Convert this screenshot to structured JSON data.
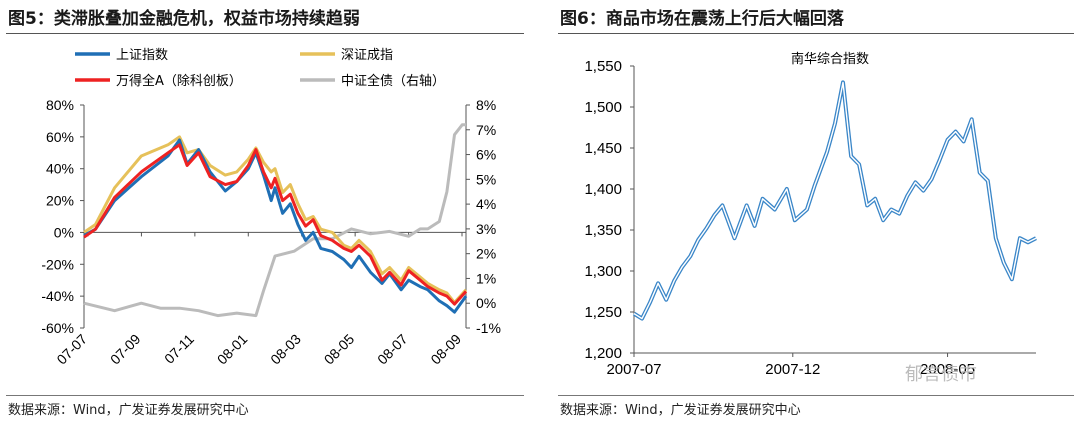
{
  "figures": {
    "fig5": {
      "title": "图5：类滞胀叠加金融危机，权益市场持续趋弱",
      "source": "数据来源：Wind，广发证券发展研究中心"
    },
    "fig6": {
      "title": "图6：商品市场在震荡上行后大幅回落",
      "source": "数据来源：Wind，广发证券发展研究中心"
    }
  },
  "watermark": "郁言债市",
  "colors": {
    "sh": "#1f6fb5",
    "sz": "#e6c15a",
    "wind": "#ee2222",
    "bond": "#bbbbbb",
    "nanhua": "#3a86c8"
  },
  "chart_data": [
    {
      "type": "line",
      "title": "",
      "x_ticks": [
        "07-07",
        "07-09",
        "07-11",
        "08-01",
        "08-03",
        "08-05",
        "08-07",
        "08-09"
      ],
      "ylim": [
        -60,
        80
      ],
      "y_ticks": [
        "80%",
        "60%",
        "40%",
        "20%",
        "0%",
        "-20%",
        "-40%",
        "-60%"
      ],
      "ylim_right": [
        -1,
        8
      ],
      "y_ticks_right": [
        "8%",
        "7%",
        "6%",
        "5%",
        "4%",
        "3%",
        "2%",
        "1%",
        "0%",
        "-1%"
      ],
      "legend": [
        "上证指数",
        "深证成指",
        "万得全A（除科创板）",
        "中证全债（右轴）"
      ],
      "series": [
        {
          "name": "上证指数",
          "axis": "left",
          "x": [
            0,
            0.03,
            0.08,
            0.15,
            0.22,
            0.25,
            0.27,
            0.3,
            0.33,
            0.37,
            0.4,
            0.43,
            0.45,
            0.47,
            0.49,
            0.5,
            0.52,
            0.54,
            0.56,
            0.58,
            0.6,
            0.62,
            0.65,
            0.68,
            0.7,
            0.72,
            0.75,
            0.78,
            0.8,
            0.83,
            0.85,
            0.88,
            0.9,
            0.93,
            0.95,
            0.97,
            1.0
          ],
          "values": [
            -2,
            2,
            20,
            35,
            48,
            58,
            43,
            52,
            38,
            26,
            32,
            40,
            50,
            36,
            20,
            28,
            12,
            18,
            5,
            -5,
            0,
            -10,
            -12,
            -17,
            -22,
            -15,
            -25,
            -32,
            -26,
            -36,
            -30,
            -34,
            -36,
            -43,
            -46,
            -50,
            -40
          ]
        },
        {
          "name": "深证成指",
          "axis": "left",
          "x": [
            0,
            0.03,
            0.08,
            0.15,
            0.22,
            0.25,
            0.27,
            0.3,
            0.33,
            0.37,
            0.4,
            0.43,
            0.45,
            0.47,
            0.49,
            0.5,
            0.52,
            0.54,
            0.56,
            0.58,
            0.6,
            0.62,
            0.65,
            0.68,
            0.7,
            0.72,
            0.75,
            0.78,
            0.8,
            0.83,
            0.85,
            0.88,
            0.9,
            0.93,
            0.95,
            0.97,
            1.0
          ],
          "values": [
            0,
            5,
            28,
            48,
            55,
            60,
            50,
            52,
            42,
            36,
            38,
            46,
            53,
            44,
            38,
            40,
            25,
            30,
            18,
            8,
            10,
            2,
            0,
            -8,
            -10,
            -5,
            -12,
            -26,
            -22,
            -30,
            -22,
            -28,
            -32,
            -36,
            -38,
            -44,
            -36
          ]
        },
        {
          "name": "万得全A（除科创板）",
          "axis": "left",
          "x": [
            0,
            0.03,
            0.08,
            0.15,
            0.22,
            0.25,
            0.27,
            0.3,
            0.33,
            0.37,
            0.4,
            0.43,
            0.45,
            0.47,
            0.49,
            0.5,
            0.52,
            0.54,
            0.56,
            0.58,
            0.6,
            0.62,
            0.65,
            0.68,
            0.7,
            0.72,
            0.75,
            0.78,
            0.8,
            0.83,
            0.85,
            0.88,
            0.9,
            0.93,
            0.95,
            0.97,
            1.0
          ],
          "values": [
            -3,
            2,
            22,
            38,
            50,
            55,
            42,
            50,
            35,
            30,
            32,
            42,
            52,
            38,
            28,
            34,
            20,
            24,
            12,
            4,
            8,
            -2,
            -5,
            -10,
            -12,
            -8,
            -15,
            -30,
            -25,
            -33,
            -24,
            -30,
            -34,
            -38,
            -40,
            -45,
            -37
          ]
        },
        {
          "name": "中证全债（右轴）",
          "axis": "right",
          "x": [
            0,
            0.08,
            0.15,
            0.2,
            0.25,
            0.3,
            0.35,
            0.4,
            0.45,
            0.47,
            0.5,
            0.55,
            0.6,
            0.65,
            0.7,
            0.75,
            0.8,
            0.85,
            0.88,
            0.9,
            0.93,
            0.95,
            0.97,
            0.99,
            1.0
          ],
          "values": [
            0,
            -0.3,
            0,
            -0.2,
            -0.2,
            -0.3,
            -0.5,
            -0.4,
            -0.5,
            0.5,
            1.9,
            2.1,
            2.6,
            2.6,
            3.0,
            2.8,
            2.9,
            2.7,
            3.0,
            3.0,
            3.3,
            4.5,
            6.8,
            7.2,
            7.2
          ]
        }
      ]
    },
    {
      "type": "line",
      "title": "南华综合指数",
      "x_ticks": [
        "2007-07",
        "2007-12",
        "2008-05"
      ],
      "ylim": [
        1200,
        1550
      ],
      "y_ticks": [
        "1,550",
        "1,500",
        "1,450",
        "1,400",
        "1,350",
        "1,300",
        "1,250",
        "1,200"
      ],
      "series": [
        {
          "name": "南华综合指数",
          "x": [
            0,
            0.02,
            0.04,
            0.06,
            0.08,
            0.1,
            0.12,
            0.14,
            0.16,
            0.18,
            0.2,
            0.22,
            0.25,
            0.28,
            0.3,
            0.32,
            0.35,
            0.38,
            0.4,
            0.43,
            0.45,
            0.48,
            0.5,
            0.52,
            0.54,
            0.56,
            0.58,
            0.6,
            0.62,
            0.64,
            0.66,
            0.68,
            0.7,
            0.72,
            0.74,
            0.76,
            0.78,
            0.8,
            0.82,
            0.84,
            0.86,
            0.88,
            0.9,
            0.92,
            0.94,
            0.96,
            0.98,
            1.0
          ],
          "values": [
            1248,
            1242,
            1262,
            1285,
            1265,
            1288,
            1305,
            1318,
            1338,
            1352,
            1368,
            1380,
            1340,
            1380,
            1355,
            1388,
            1375,
            1400,
            1362,
            1375,
            1405,
            1445,
            1480,
            1530,
            1440,
            1430,
            1380,
            1388,
            1362,
            1375,
            1370,
            1392,
            1408,
            1398,
            1412,
            1435,
            1460,
            1470,
            1458,
            1485,
            1420,
            1410,
            1340,
            1310,
            1290,
            1340,
            1335,
            1340
          ]
        }
      ]
    }
  ]
}
